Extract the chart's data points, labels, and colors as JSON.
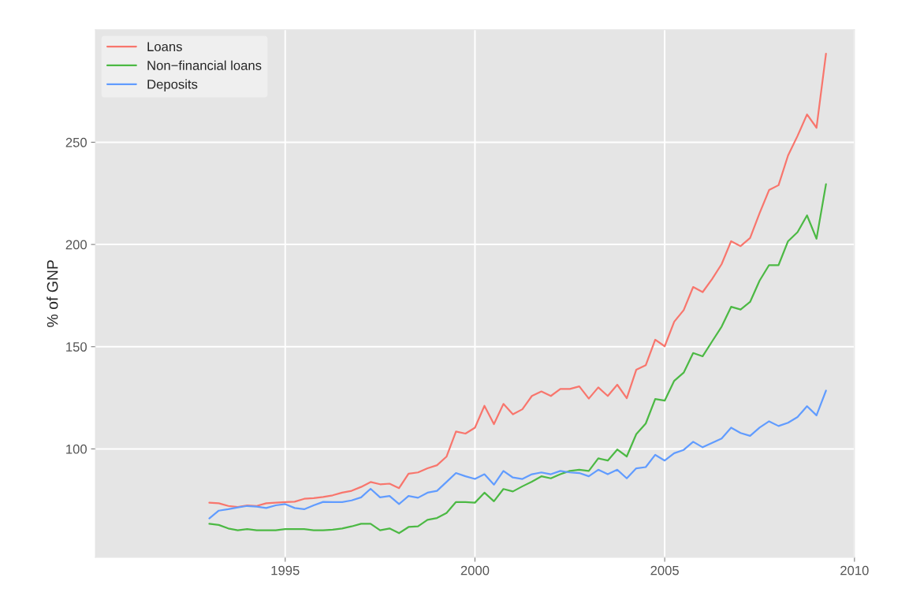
{
  "chart_data": {
    "type": "line",
    "ylabel": "% of GNP",
    "x": [
      1993.0,
      1993.25,
      1993.5,
      1993.75,
      1994.0,
      1994.25,
      1994.5,
      1994.75,
      1995.0,
      1995.25,
      1995.5,
      1995.75,
      1996.0,
      1996.25,
      1996.5,
      1996.75,
      1997.0,
      1997.25,
      1997.5,
      1997.75,
      1998.0,
      1998.25,
      1998.5,
      1998.75,
      1999.0,
      1999.25,
      1999.5,
      1999.75,
      2000.0,
      2000.25,
      2000.5,
      2000.75,
      2001.0,
      2001.25,
      2001.5,
      2001.75,
      2002.0,
      2002.25,
      2002.5,
      2002.75,
      2003.0,
      2003.25,
      2003.5,
      2003.75,
      2004.0,
      2004.25,
      2004.5,
      2004.75,
      2005.0,
      2005.25,
      2005.5,
      2005.75,
      2006.0,
      2006.25,
      2006.5,
      2006.75,
      2007.0,
      2007.25,
      2007.5,
      2007.75,
      2008.0,
      2008.25,
      2008.5,
      2008.75,
      2009.0,
      2009.25
    ],
    "series": [
      {
        "name": "Loans",
        "color": "#f8766d",
        "values": [
          73.7,
          73.4,
          72.1,
          71.6,
          72.4,
          72.1,
          73.4,
          73.7,
          74.0,
          74.2,
          75.6,
          75.9,
          76.5,
          77.3,
          78.6,
          79.5,
          81.4,
          83.8,
          82.7,
          83.0,
          80.8,
          87.9,
          88.5,
          90.5,
          92.0,
          96.2,
          108.5,
          107.5,
          110.4,
          121.1,
          112.1,
          122.0,
          116.9,
          119.4,
          125.9,
          128.1,
          125.9,
          129.3,
          129.3,
          130.6,
          124.6,
          130.1,
          125.9,
          131.4,
          124.8,
          138.7,
          140.9,
          153.4,
          150.2,
          162.2,
          167.9,
          179.2,
          176.7,
          183.1,
          190.4,
          201.6,
          199.2,
          203.2,
          215.3,
          226.6,
          229.0,
          243.5,
          253.1,
          263.6,
          257.1,
          293.3
        ]
      },
      {
        "name": "Non−financial loans",
        "color": "#4cb944",
        "values": [
          63.4,
          62.8,
          61.1,
          60.2,
          60.8,
          60.2,
          60.2,
          60.2,
          60.8,
          60.8,
          60.8,
          60.2,
          60.2,
          60.5,
          61.1,
          62.1,
          63.4,
          63.4,
          60.2,
          61.1,
          58.8,
          61.8,
          62.1,
          65.3,
          66.2,
          68.6,
          74.0,
          74.0,
          73.7,
          78.6,
          74.4,
          80.4,
          79.2,
          81.7,
          84.0,
          86.6,
          85.6,
          87.6,
          89.2,
          89.8,
          89.2,
          95.4,
          94.3,
          99.7,
          96.3,
          107.2,
          112.4,
          124.4,
          123.6,
          133.3,
          137.3,
          146.9,
          145.3,
          152.6,
          159.8,
          169.5,
          168.2,
          171.9,
          182.3,
          189.9,
          189.9,
          201.6,
          206.0,
          214.2,
          202.8,
          229.5
        ]
      },
      {
        "name": "Deposits",
        "color": "#619cff",
        "values": [
          66.0,
          69.8,
          70.5,
          71.4,
          72.1,
          71.8,
          71.1,
          72.4,
          73.0,
          71.1,
          70.5,
          72.4,
          74.1,
          74.0,
          74.0,
          74.8,
          76.3,
          80.5,
          76.3,
          77.0,
          73.0,
          77.0,
          76.1,
          78.6,
          79.5,
          83.8,
          88.2,
          86.6,
          85.3,
          87.6,
          82.5,
          89.2,
          86.0,
          85.3,
          87.6,
          88.5,
          87.6,
          89.2,
          88.5,
          88.2,
          86.6,
          89.8,
          87.6,
          89.8,
          85.6,
          90.5,
          91.1,
          97.1,
          94.3,
          97.9,
          99.5,
          103.5,
          100.8,
          103.0,
          105.1,
          110.4,
          107.8,
          106.4,
          110.4,
          113.5,
          111.2,
          112.8,
          115.6,
          120.9,
          116.4,
          128.5
        ]
      }
    ],
    "xlim": [
      1990,
      2010
    ],
    "ylim": [
      47,
      305
    ],
    "xticks": [
      1995,
      2000,
      2005,
      2010
    ],
    "yticks": [
      100,
      150,
      200,
      250
    ],
    "grid": true,
    "legend": "top left"
  }
}
